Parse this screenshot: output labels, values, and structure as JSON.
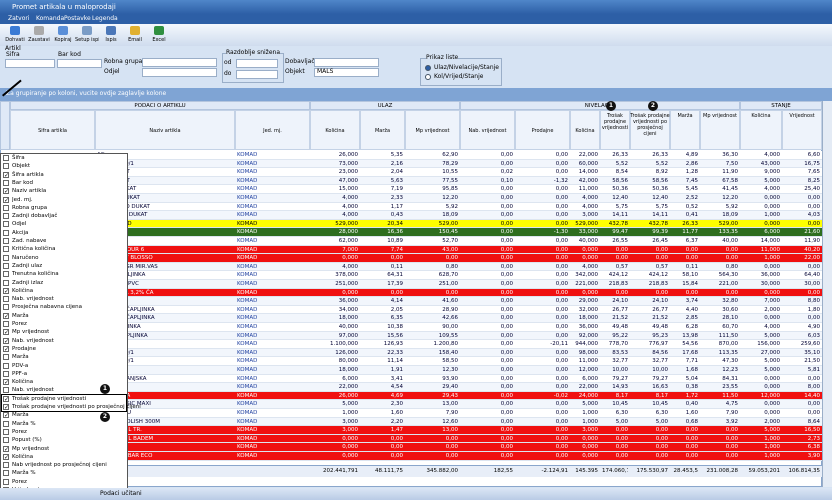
{
  "window": {
    "title": "Promet artikala u maloprodaji"
  },
  "menu": [
    "Zatvori",
    "Komanda",
    "Postavke",
    "Legenda"
  ],
  "toolbar": [
    "Dohvati",
    "Zaustavi",
    "Kopiraj",
    "Setup ispisa",
    "Ispis",
    "Email",
    "Excel"
  ],
  "filters": {
    "artikl": "Artikl",
    "sifra": "Šifra",
    "bar_kod": "Bar kod",
    "robna_grupa": "Robna grupa",
    "odjel": "Odjel",
    "razdoblje": "Razdoblje snižena",
    "od": "od",
    "do": "do",
    "dobavljac": "Dobavljač",
    "objekt": "Objekt",
    "objekt_value": "MALS",
    "prikaz": "Prikaz liste",
    "option_1": "Ulaz/Nivelacije/Stanje",
    "option_2": "Kol/Vrijed/Stanje"
  },
  "group_hint": "Za grupiranje po koloni, vucite ovdje zaglavlje kolone",
  "table": {
    "groups": [
      "PODACI O ARTIKLU",
      "ULAZ",
      "NIVELACIJE",
      "STANJE"
    ],
    "columns": [
      "Šifra artikla",
      "Naziv artikla",
      "Jed. mj.",
      "Količina",
      "Marža",
      "Mp vrijednost",
      "Nab. vrijednost",
      "Prodajne",
      "Količina",
      "Trošak prodajne vrijednosti",
      "Trošak prodajne vrijednosti po prosječnoj cijeni",
      "Marža",
      "Mp vrijednost",
      "Količina",
      "Vrijednost"
    ],
    "rows": [
      {
        "cells": [
          "AC",
          "KOMAD",
          "26,000",
          "5,35",
          "62,90",
          "0,00",
          "0,00",
          "22,000",
          "26,33",
          "26,33",
          "4,89",
          "36,30",
          "4,000",
          "6,60"
        ]
      },
      {
        "cells": [
          "DOCELA 50/1",
          "KOMAD",
          "73,000",
          "2,16",
          "78,29",
          "0,00",
          "0,00",
          "60,000",
          "5,52",
          "5,52",
          "2,86",
          "7,50",
          "43,000",
          "16,75"
        ]
      },
      {
        "cells": [
          "-500 DUKAT",
          "KOMAD",
          "23,000",
          "2,04",
          "10,55",
          "0,02",
          "0,00",
          "14,000",
          "8,54",
          "8,92",
          "1,28",
          "11,90",
          "9,000",
          "7,65"
        ]
      },
      {
        "cells": [
          "-500 DUKAT",
          "KOMAD",
          "47,000",
          "5,63",
          "77,55",
          "0,10",
          "-1,32",
          "42,000",
          "58,56",
          "58,56",
          "7,45",
          "67,58",
          "5,000",
          "8,25"
        ]
      },
      {
        "cells": [
          "NTEGR DUKAT",
          "KOMAD",
          "15,000",
          "7,19",
          "95,85",
          "0,00",
          "0,00",
          "11,000",
          "50,36",
          "50,36",
          "5,45",
          "41,45",
          "4,000",
          "25,40"
        ]
      },
      {
        "cells": [
          "LAŽENO DUKAT",
          "KOMAD",
          "4,000",
          "2,33",
          "12,20",
          "0,00",
          "0,00",
          "4,000",
          "12,40",
          "12,40",
          "2,52",
          "12,20",
          "0,000",
          "0,00"
        ]
      },
      {
        "cells": [
          "-500 ČEŠKO DUKAT",
          "KOMAD",
          "4,000",
          "1,17",
          "5,92",
          "0,00",
          "0,00",
          "4,000",
          "5,75",
          "5,75",
          "0,52",
          "5,92",
          "0,000",
          "0,00"
        ]
      },
      {
        "cells": [
          "-500 MEKO DUKAT",
          "KOMAD",
          "4,000",
          "0,43",
          "18,09",
          "0,00",
          "0,00",
          "3,000",
          "14,11",
          "14,11",
          "0,41",
          "18,09",
          "1,000",
          "4,03"
        ]
      },
      {
        "cells": [
          "% MILE LIND",
          "KOMAD",
          "529,000",
          "20,34",
          "529,00",
          "0,00",
          "0,00",
          "529,000",
          "432,78",
          "432,78",
          "26,33",
          "529,00",
          "0,000",
          "0,00"
        ],
        "style": "yellow"
      },
      {
        "cells": [
          "BEZA",
          "KOMAD",
          "28,000",
          "16,36",
          "150,45",
          "0,00",
          "-1,30",
          "33,000",
          "99,47",
          "99,39",
          "11,77",
          "133,35",
          "6,000",
          "21,60"
        ],
        "style": "green"
      },
      {
        "cells": [
          "200 GR",
          "KOMAD",
          "62,000",
          "10,89",
          "52,70",
          "0,00",
          "0,00",
          "40,000",
          "26,55",
          "26,45",
          "6,37",
          "40,00",
          "14,000",
          "11,90"
        ]
      },
      {
        "cells": [
          "PURE FLAVOUR 6",
          "KOMAD",
          "7,000",
          "7,74",
          "43,00",
          "0,00",
          "0,00",
          "0,000",
          "0,00",
          "0,00",
          "0,00",
          "0,00",
          "11,000",
          "40,20"
        ],
        "style": "red"
      },
      {
        "cells": [
          "ML CHERRY BLOSSO",
          "KOMAD",
          "0,000",
          "0,00",
          "0,00",
          "0,00",
          "0,00",
          "0,000",
          "0,00",
          "0,00",
          "0,00",
          "0,00",
          "1,000",
          "22,00"
        ],
        "style": "red"
      },
      {
        "cells": [
          "LANES 14 GR MIR.VAS",
          "KOMAD",
          "4,000",
          "0,11",
          "0,80",
          "0,00",
          "0,00",
          "4,000",
          "0,57",
          "0,57",
          "0,11",
          "0,80",
          "0,000",
          "0,00"
        ]
      },
      {
        "cells": [
          "HT 1% ČAPLJINKA",
          "KOMAD",
          "378,000",
          "64,31",
          "628,70",
          "0,00",
          "0,00",
          "342,000",
          "424,12",
          "424,12",
          "58,10",
          "564,30",
          "36,000",
          "64,40"
        ]
      },
      {
        "cells": [
          "E 1 L 3,2% PVC",
          "KOMAD",
          "251,000",
          "17,39",
          "251,00",
          "0,00",
          "0,00",
          "221,000",
          "218,83",
          "218,83",
          "15,84",
          "221,00",
          "30,000",
          "30,00"
        ]
      },
      {
        "cells": [
          "TEČN ČAŠA 3,2% ČA",
          "KOMAD",
          "0,000",
          "0,00",
          "0,00",
          "0,00",
          "0,00",
          "0,000",
          "0,00",
          "0,00",
          "0,00",
          "0,00",
          "0,000",
          "0,00"
        ],
        "style": "red"
      },
      {
        "cells": [
          "ČAPLJINKA",
          "KOMAD",
          "36,000",
          "4,14",
          "41,60",
          "0,00",
          "0,00",
          "29,000",
          "24,10",
          "24,10",
          "3,74",
          "32,80",
          "7,000",
          "8,80"
        ]
      },
      {
        "cells": [
          "0 GR 12% ČAPLJINKA",
          "KOMAD",
          "34,000",
          "2,05",
          "28,90",
          "0,00",
          "0,00",
          "32,000",
          "26,77",
          "26,77",
          "4,40",
          "30,60",
          "2,000",
          "1,80"
        ]
      },
      {
        "cells": [
          "0 GR 18% ČAPLJINKA",
          "KOMAD",
          "18,000",
          "6,35",
          "42,66",
          "0,00",
          "0,00",
          "18,000",
          "21,52",
          "21,52",
          "2,85",
          "28,10",
          "0,000",
          "0,00"
        ]
      },
      {
        "cells": [
          "0 GR ČAPLJINKA",
          "KOMAD",
          "40,000",
          "10,38",
          "90,00",
          "0,00",
          "0,00",
          "36,000",
          "49,48",
          "49,48",
          "6,28",
          "60,70",
          "4,000",
          "4,90"
        ]
      },
      {
        "cells": [
          "200 GR ČAPLJINKA",
          "KOMAD",
          "97,000",
          "15,56",
          "109,55",
          "0,00",
          "0,00",
          "92,000",
          "95,22",
          "95,23",
          "13,98",
          "111,50",
          "5,000",
          "6,03"
        ]
      },
      {
        "cells": [
          "LIMENKA",
          "KOMAD",
          "1.100,000",
          "126,93",
          "1.200,80",
          "0,00",
          "-20,11",
          "944,000",
          "778,70",
          "776,97",
          "54,56",
          "870,00",
          "156,000",
          "259,60"
        ]
      },
      {
        "cells": [
          "DOCELA 20/1",
          "KOMAD",
          "126,000",
          "22,33",
          "158,40",
          "0,00",
          "0,00",
          "98,000",
          "83,53",
          "84,56",
          "17,68",
          "113,35",
          "27,000",
          "35,10"
        ]
      },
      {
        "cells": [
          "DOCELA 30/1",
          "KOMAD",
          "80,000",
          "11,14",
          "58,50",
          "0,00",
          "0,00",
          "11,000",
          "32,77",
          "32,77",
          "7,71",
          "47,30",
          "5,000",
          "21,50"
        ]
      },
      {
        "cells": [
          "KOMAD",
          "18,000",
          "1,91",
          "12,30",
          "0,00",
          "0,00",
          "12,000",
          "10,00",
          "10,00",
          "1,68",
          "12,23",
          "5,000",
          "5,81"
        ]
      },
      {
        "cells": [
          "320 GR KRANJSKA",
          "KOMAD",
          "6,000",
          "3,41",
          "93,90",
          "0,00",
          "0,00",
          "6,000",
          "79,27",
          "79,27",
          "5,04",
          "84,31",
          "0,000",
          "0,00"
        ]
      },
      {
        "cells": [
          "L BRESKVA",
          "KOMAD",
          "22,000",
          "4,54",
          "29,40",
          "0,00",
          "0,00",
          "22,000",
          "14,93",
          "16,63",
          "0,38",
          "23,55",
          "0,000",
          "8,00"
        ]
      },
      {
        "cells": [
          "L BRUSNICA",
          "KOMAD",
          "26,000",
          "4,69",
          "29,43",
          "0,00",
          "-0,02",
          "24,000",
          "8,17",
          "8,17",
          "1,72",
          "11,50",
          "12,000",
          "14,40"
        ],
        "style": "red"
      },
      {
        "cells": [
          "MITE CLASSIC MAXI",
          "KOMAD",
          "5,000",
          "2,30",
          "13,00",
          "0,00",
          "0,00",
          "5,000",
          "10,45",
          "10,45",
          "0,40",
          "4,75",
          "0,000",
          "0,00"
        ]
      },
      {
        "cells": [
          "ZA PERILICU",
          "KOMAD",
          "1,000",
          "1,60",
          "7,90",
          "0,00",
          "0,00",
          "1,000",
          "6,30",
          "6,30",
          "1,60",
          "7,90",
          "0,000",
          "0,00"
        ]
      },
      {
        "cells": [
          "RNITURE POLISH 300M",
          "KOMAD",
          "3,000",
          "2,20",
          "12,60",
          "0,00",
          "0,00",
          "1,000",
          "5,00",
          "5,00",
          "0,68",
          "3,92",
          "2,000",
          "8,64"
        ]
      },
      {
        "cells": [
          "TUŠ. 500 ML TR.",
          "KOMAD",
          "3,000",
          "1,47",
          "13,00",
          "0,00",
          "0,00",
          "3,000",
          "0,00",
          "0,00",
          "0,00",
          "0,00",
          "5,000",
          "16,50"
        ],
        "style": "red"
      },
      {
        "cells": [
          "TUŠ. 500 ML BADEM",
          "KOMAD",
          "0,000",
          "0,00",
          "0,00",
          "0,00",
          "0,00",
          "0,000",
          "0,00",
          "0,00",
          "0,00",
          "0,00",
          "1,000",
          "2,73"
        ],
        "style": "red"
      },
      {
        "cells": [
          "APNI",
          "KOMAD",
          "0,000",
          "0,00",
          "0,00",
          "0,00",
          "0,00",
          "0,000",
          "0,00",
          "0,00",
          "0,00",
          "0,00",
          "1,000",
          "6,38"
        ],
        "style": "red"
      },
      {
        "cells": [
          "MAGARTIN BAR ECO",
          "KOMAD",
          "0,000",
          "0,00",
          "0,00",
          "0,00",
          "0,00",
          "0,000",
          "0,00",
          "0,00",
          "0,00",
          "0,00",
          "1,000",
          "3,90"
        ],
        "style": "red"
      }
    ],
    "totals": [
      "202.441,791",
      "48.111,75",
      "345.882,00",
      "182,55",
      "-2.124,91",
      "145.395",
      "174.060,73",
      "175.530,97",
      "28.453,5",
      "231.008,28",
      "59.053,201",
      "106.814,35"
    ]
  },
  "column_chooser": {
    "items": [
      {
        "label": "Šifra",
        "checked": false
      },
      {
        "label": "Objekt",
        "checked": false
      },
      {
        "label": "Šifra artikla",
        "checked": true
      },
      {
        "label": "Bar kod",
        "checked": false
      },
      {
        "label": "Naziv artikla",
        "checked": true
      },
      {
        "label": "Jed. mj.",
        "checked": true
      },
      {
        "label": "Robna grupa",
        "checked": false
      },
      {
        "label": "Zadnji dobavljač",
        "checked": false
      },
      {
        "label": "Odjel",
        "checked": false
      },
      {
        "label": "Akcija",
        "checked": false
      },
      {
        "label": "Zad. nabave",
        "checked": false
      },
      {
        "label": "Kritična količina",
        "checked": false
      },
      {
        "label": "Naručeno",
        "checked": false
      },
      {
        "label": "Zadnji ulaz",
        "checked": false
      },
      {
        "label": "Trenutna količina",
        "checked": false
      },
      {
        "label": "Zadnji izlaz",
        "checked": false
      },
      {
        "label": "Količina",
        "checked": true
      },
      {
        "label": "Nab. vrijednost",
        "checked": false
      },
      {
        "label": "Prosječna nabavna cijena",
        "checked": false
      },
      {
        "label": "Marža",
        "checked": true
      },
      {
        "label": "Porez",
        "checked": false
      },
      {
        "label": "Mp vrijednost",
        "checked": true
      },
      {
        "label": "Nab. vrijednost",
        "checked": true
      },
      {
        "label": "Prodajne",
        "checked": true
      },
      {
        "label": "Marža",
        "checked": false
      },
      {
        "label": "PDV-a",
        "checked": false
      },
      {
        "label": "PPF-a",
        "checked": false
      },
      {
        "label": "Količina",
        "checked": true
      },
      {
        "label": "Nab. vrijednost",
        "checked": false
      },
      {
        "label": "Trošak prodajne vrijednosti",
        "checked": true
      },
      {
        "label": "Trošak prodajne vrijednosti po prosječnoj cijeni",
        "checked": true
      },
      {
        "label": "Marža",
        "checked": true
      },
      {
        "label": "Marža %",
        "checked": false
      },
      {
        "label": "Porez",
        "checked": false
      },
      {
        "label": "Popust (%)",
        "checked": false
      },
      {
        "label": "Mp vrijednost",
        "checked": true
      },
      {
        "label": "Količina",
        "checked": true
      },
      {
        "label": "Nab vrijednost po prosječnoj cijeni",
        "checked": false
      },
      {
        "label": "Marža %",
        "checked": false
      },
      {
        "label": "Porez",
        "checked": false
      },
      {
        "label": "Vrijednost",
        "checked": true
      }
    ]
  },
  "annotations": [
    "1",
    "2",
    "1",
    "2"
  ],
  "status": "Podaci učitani"
}
